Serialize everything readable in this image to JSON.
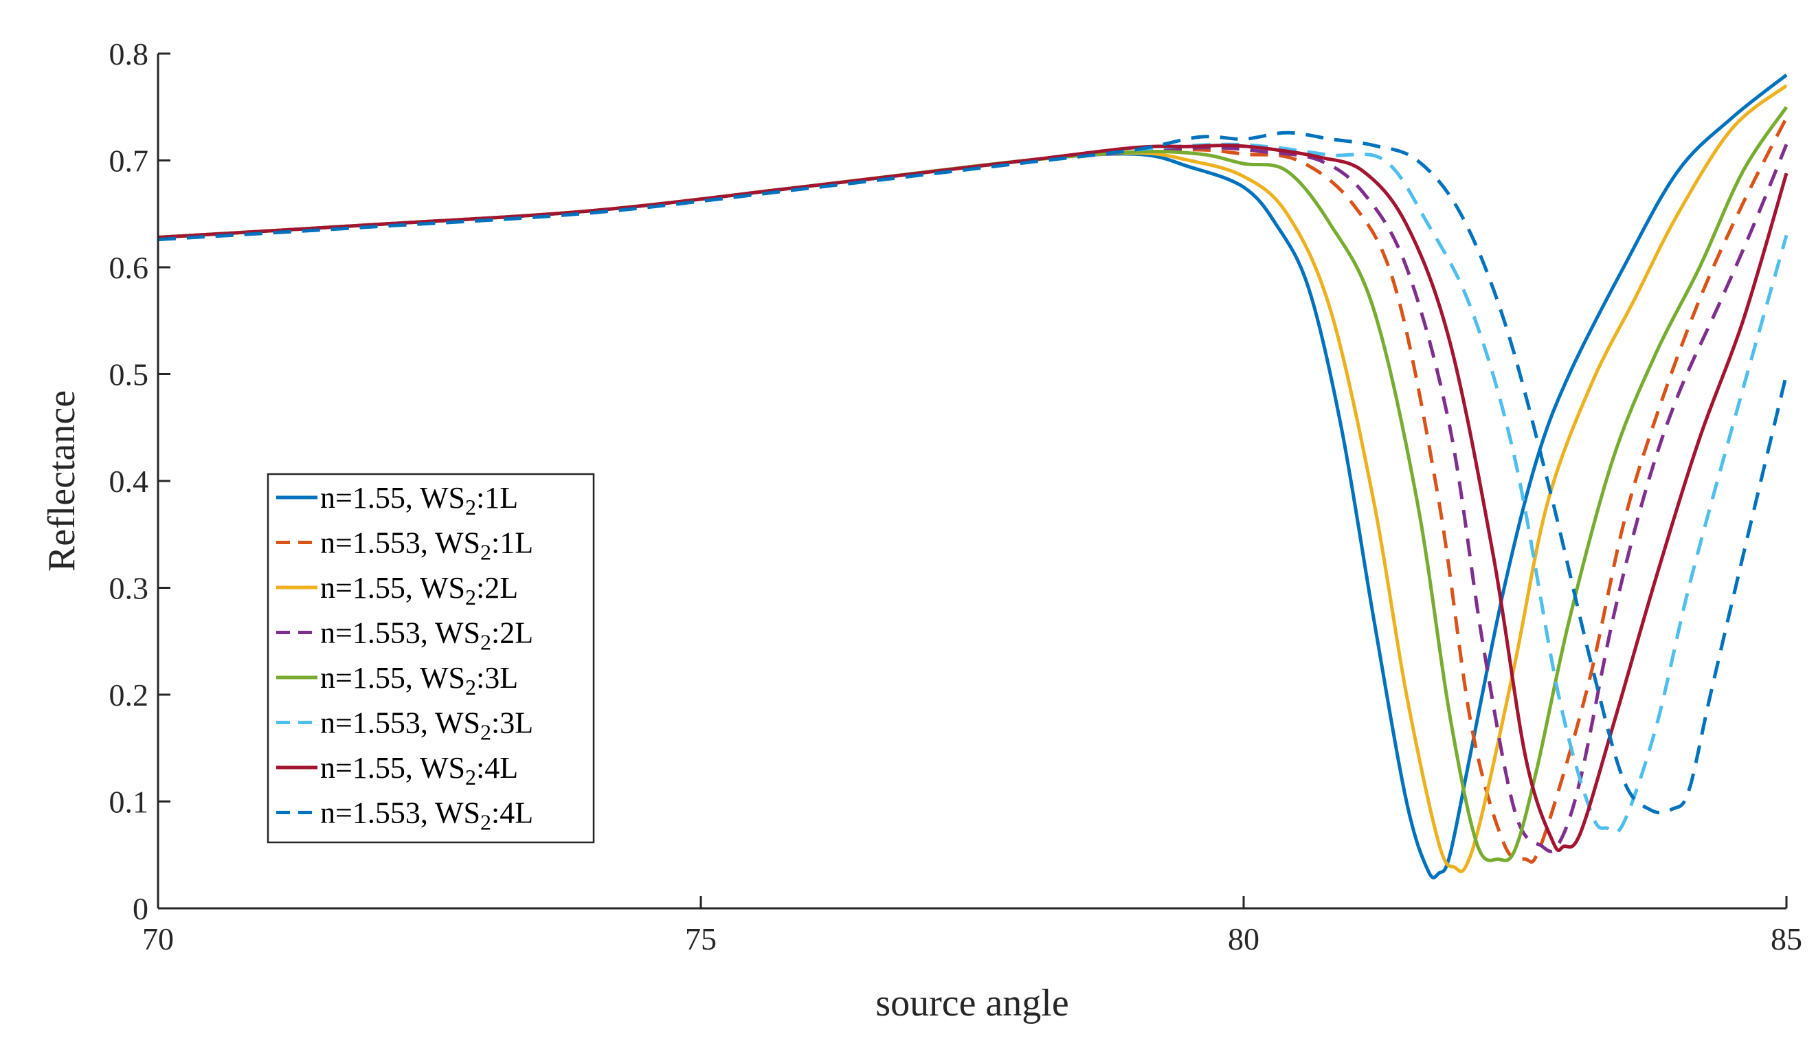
{
  "chart_data": {
    "type": "line",
    "title": "",
    "xlabel": "source angle",
    "ylabel": "Reflectance",
    "xlim": [
      70,
      85
    ],
    "ylim": [
      0,
      0.8
    ],
    "xticks": [
      70,
      75,
      80,
      85
    ],
    "xtick_labels": [
      "70",
      "75",
      "80",
      "85"
    ],
    "yticks": [
      0,
      0.1,
      0.2,
      0.3,
      0.4,
      0.5,
      0.6,
      0.7,
      0.8
    ],
    "ytick_labels": [
      "0",
      "0.1",
      "0.2",
      "0.3",
      "0.4",
      "0.5",
      "0.6",
      "0.7",
      "0.8"
    ],
    "grid": false,
    "legend_position": "lower-left",
    "series": [
      {
        "name": "n=1.55, WS2:1L",
        "label_prefix": "n=1.55,",
        "label_layer": ":1L",
        "color": "#0072BD",
        "dash": "solid",
        "x": [
          70,
          72,
          74,
          76,
          78,
          79,
          79.5,
          80,
          80.3,
          80.6,
          80.9,
          81.2,
          81.5,
          81.7,
          81.8,
          81.9,
          82.1,
          82.4,
          82.7,
          83.0,
          83.5,
          84.0,
          84.5,
          85.0
        ],
        "y": [
          0.628,
          0.64,
          0.653,
          0.676,
          0.7,
          0.706,
          0.694,
          0.675,
          0.64,
          0.58,
          0.45,
          0.27,
          0.1,
          0.035,
          0.033,
          0.05,
          0.15,
          0.3,
          0.42,
          0.5,
          0.6,
          0.69,
          0.74,
          0.78
        ]
      },
      {
        "name": "n=1.553, WS2:1L",
        "label_prefix": "n=1.553,",
        "label_layer": ":1L",
        "color": "#D95319",
        "dash": "dashed",
        "x": [
          70,
          72,
          74,
          76,
          78,
          79,
          79.6,
          80,
          80.5,
          81.0,
          81.4,
          81.8,
          82.1,
          82.4,
          82.6,
          82.7,
          82.9,
          83.2,
          83.5,
          83.8,
          84.2,
          84.6,
          85.0
        ],
        "y": [
          0.627,
          0.639,
          0.652,
          0.675,
          0.699,
          0.708,
          0.71,
          0.706,
          0.7,
          0.66,
          0.58,
          0.38,
          0.17,
          0.06,
          0.046,
          0.05,
          0.11,
          0.22,
          0.36,
          0.46,
          0.57,
          0.66,
          0.74
        ]
      },
      {
        "name": "n=1.55, WS2:2L",
        "label_prefix": "n=1.55,",
        "label_layer": ":2L",
        "color": "#EDB120",
        "dash": "solid",
        "x": [
          70,
          72,
          74,
          76,
          78,
          79,
          79.5,
          80,
          80.4,
          80.8,
          81.2,
          81.5,
          81.8,
          81.95,
          82.05,
          82.2,
          82.5,
          82.8,
          83.2,
          83.6,
          84.0,
          84.5,
          85.0
        ],
        "y": [
          0.628,
          0.64,
          0.653,
          0.676,
          0.7,
          0.707,
          0.7,
          0.685,
          0.65,
          0.56,
          0.38,
          0.2,
          0.06,
          0.038,
          0.04,
          0.09,
          0.23,
          0.38,
          0.49,
          0.57,
          0.65,
          0.73,
          0.77
        ]
      },
      {
        "name": "n=1.553, WS2:2L",
        "label_prefix": "n=1.553,",
        "label_layer": ":2L",
        "color": "#7E2F8E",
        "dash": "dashed",
        "x": [
          70,
          72,
          74,
          76,
          78,
          79,
          79.7,
          80.2,
          80.7,
          81.1,
          81.5,
          81.9,
          82.2,
          82.5,
          82.75,
          82.9,
          83.1,
          83.4,
          83.7,
          84.0,
          84.4,
          84.7,
          85.0
        ],
        "y": [
          0.627,
          0.639,
          0.652,
          0.675,
          0.699,
          0.708,
          0.712,
          0.708,
          0.7,
          0.67,
          0.6,
          0.45,
          0.25,
          0.09,
          0.058,
          0.06,
          0.12,
          0.27,
          0.39,
          0.48,
          0.57,
          0.64,
          0.715
        ]
      },
      {
        "name": "n=1.55, WS2:3L",
        "label_prefix": "n=1.55,",
        "label_layer": ":3L",
        "color": "#77AC30",
        "dash": "solid",
        "x": [
          70,
          72,
          74,
          76,
          78,
          79,
          79.6,
          80,
          80.4,
          80.8,
          81.2,
          81.6,
          81.9,
          82.15,
          82.35,
          82.5,
          82.7,
          83.0,
          83.4,
          83.8,
          84.2,
          84.6,
          85.0
        ],
        "y": [
          0.628,
          0.64,
          0.653,
          0.676,
          0.7,
          0.708,
          0.706,
          0.697,
          0.69,
          0.64,
          0.56,
          0.38,
          0.18,
          0.06,
          0.046,
          0.055,
          0.13,
          0.27,
          0.42,
          0.52,
          0.6,
          0.69,
          0.75
        ]
      },
      {
        "name": "n=1.553, WS2:3L",
        "label_prefix": "n=1.553,",
        "label_layer": ":3L",
        "color": "#4DBEEE",
        "dash": "dashed",
        "x": [
          70,
          72,
          74,
          76,
          78,
          79,
          79.8,
          80.3,
          80.8,
          81.3,
          81.7,
          82.1,
          82.5,
          82.9,
          83.2,
          83.35,
          83.5,
          83.8,
          84.1,
          84.5,
          85.0
        ],
        "y": [
          0.627,
          0.639,
          0.652,
          0.675,
          0.699,
          0.71,
          0.715,
          0.712,
          0.705,
          0.7,
          0.64,
          0.56,
          0.42,
          0.2,
          0.09,
          0.075,
          0.08,
          0.17,
          0.3,
          0.45,
          0.63
        ]
      },
      {
        "name": "n=1.55, WS2:4L",
        "label_prefix": "n=1.55,",
        "label_layer": ":4L",
        "color": "#A2142F",
        "dash": "solid",
        "x": [
          70,
          72,
          74,
          76,
          78,
          79,
          79.5,
          79.9,
          80.3,
          80.7,
          81.1,
          81.5,
          81.9,
          82.3,
          82.6,
          82.85,
          82.95,
          83.1,
          83.4,
          83.8,
          84.2,
          84.6,
          85.0
        ],
        "y": [
          0.628,
          0.64,
          0.653,
          0.676,
          0.7,
          0.712,
          0.713,
          0.714,
          0.71,
          0.703,
          0.69,
          0.64,
          0.53,
          0.33,
          0.14,
          0.062,
          0.058,
          0.07,
          0.17,
          0.31,
          0.44,
          0.55,
          0.688
        ]
      },
      {
        "name": "n=1.553, WS2:4L",
        "label_prefix": "n=1.553,",
        "label_layer": ":4L",
        "color": "#0072BD",
        "dash": "dashed",
        "x": [
          70,
          72,
          74,
          76,
          78,
          79,
          79.6,
          80.0,
          80.4,
          80.8,
          81.2,
          81.6,
          82.0,
          82.4,
          82.8,
          83.2,
          83.5,
          83.75,
          83.95,
          84.1,
          84.3,
          84.6,
          85.0
        ],
        "y": [
          0.626,
          0.638,
          0.651,
          0.674,
          0.698,
          0.71,
          0.722,
          0.72,
          0.726,
          0.72,
          0.714,
          0.7,
          0.65,
          0.55,
          0.4,
          0.23,
          0.12,
          0.092,
          0.093,
          0.11,
          0.2,
          0.33,
          0.5
        ]
      }
    ]
  },
  "legend": {
    "ws_label": "WS",
    "ws_subscript": "2"
  }
}
